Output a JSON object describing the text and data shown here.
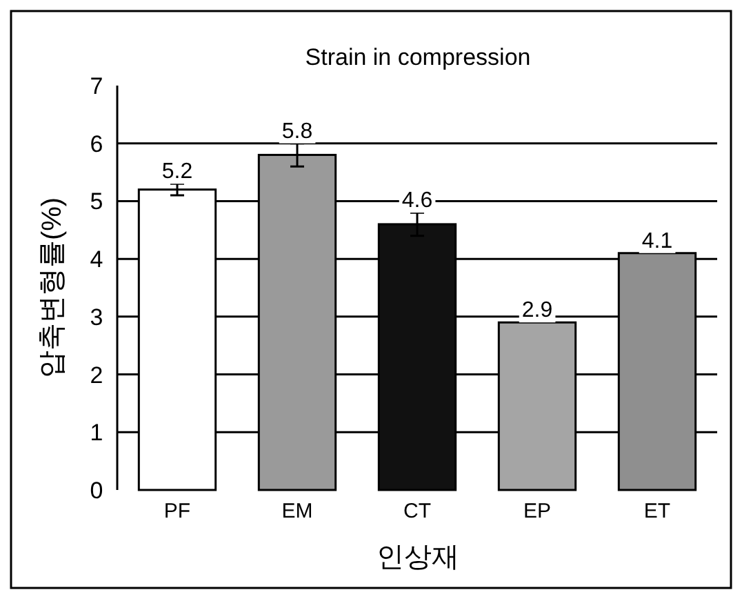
{
  "chart_data": {
    "type": "bar",
    "title": "Strain in compression",
    "xlabel": "인상재",
    "ylabel": "압축변형률(%)",
    "categories": [
      "PF",
      "EM",
      "CT",
      "EP",
      "ET"
    ],
    "values": [
      5.2,
      5.8,
      4.6,
      2.9,
      4.1
    ],
    "errors": [
      0.1,
      0.2,
      0.2,
      null,
      null
    ],
    "colors": [
      "#ffffff",
      "#9a9a9a",
      "#111111",
      "#a5a5a5",
      "#8f8f8f"
    ],
    "ylim": [
      0,
      7
    ],
    "yticks": [
      0,
      1,
      2,
      3,
      4,
      5,
      6,
      7
    ],
    "grid": "y",
    "data_labels": true
  }
}
